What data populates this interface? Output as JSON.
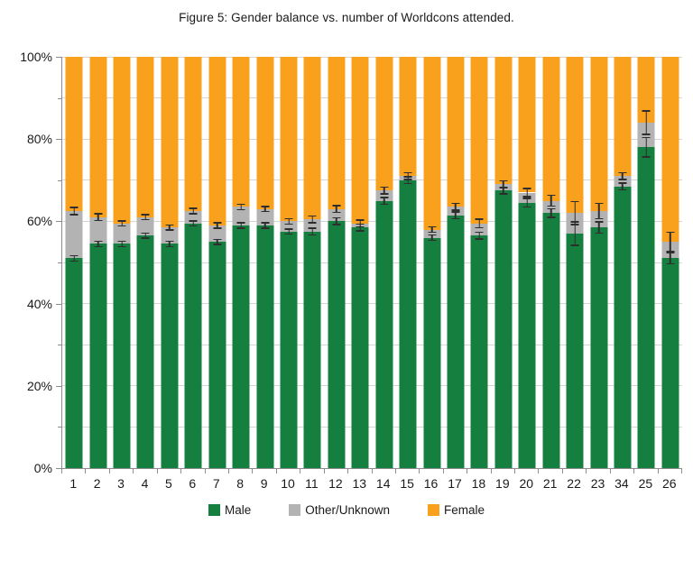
{
  "chart_data": {
    "type": "bar",
    "stacked": true,
    "orientation": "vertical",
    "title": "Figure 5: Gender balance vs. number of Worldcons attended.",
    "xlabel": "",
    "ylabel": "",
    "ylim": [
      0,
      100
    ],
    "y_major_ticks": [
      "0%",
      "20%",
      "40%",
      "60%",
      "80%",
      "100%"
    ],
    "y_minor_tick_step_percent": 10,
    "grid": "horizontal, every 10%",
    "legend_position": "bottom-center",
    "categories": [
      "1",
      "2",
      "3",
      "4",
      "5",
      "6",
      "7",
      "8",
      "9",
      "10",
      "11",
      "12",
      "13",
      "14",
      "15",
      "16",
      "17",
      "18",
      "19",
      "20",
      "21",
      "22",
      "23",
      "34",
      "25",
      "26"
    ],
    "series": [
      {
        "name": "Male",
        "color": "#157f3f",
        "values": [
          51,
          54.5,
          54.5,
          56.5,
          54.5,
          59.5,
          55,
          59,
          59,
          57.5,
          57.5,
          60,
          58.5,
          65,
          70,
          56,
          61.5,
          56.5,
          67.5,
          64.5,
          62,
          57,
          58.5,
          68.5,
          78,
          51
        ]
      },
      {
        "name": "Other/Unknown",
        "color": "#b3b3b3",
        "values": [
          11.5,
          6.5,
          5,
          4.5,
          4,
          3,
          4,
          4.5,
          4,
          2.5,
          3,
          3,
          1,
          2.5,
          1,
          2,
          2,
          3,
          1.5,
          2.5,
          3,
          5,
          4,
          2.5,
          6,
          4
        ]
      },
      {
        "name": "Female",
        "color": "#f9a11c",
        "values": [
          37.5,
          39,
          40.5,
          39,
          41.5,
          37.5,
          41,
          36.5,
          37,
          40,
          39.5,
          37,
          40.5,
          32.5,
          29,
          42,
          36.5,
          40.5,
          31,
          33,
          35,
          38,
          37.5,
          29,
          16,
          45
        ]
      }
    ],
    "error_bars": {
      "color": "#2e2e2e",
      "male_top_plus_minus": [
        0.8,
        0.8,
        0.8,
        0.8,
        0.8,
        0.8,
        0.8,
        0.8,
        0.8,
        0.8,
        1,
        1,
        1,
        1,
        1,
        0.8,
        1,
        1,
        1,
        1.2,
        1.2,
        3,
        1.5,
        1,
        2.5,
        1.5
      ],
      "other_top_plus_minus": [
        1,
        1,
        0.8,
        0.8,
        0.8,
        0.8,
        0.8,
        0.8,
        0.8,
        0.8,
        1,
        1,
        1,
        1,
        1,
        0.8,
        1,
        1.2,
        1,
        1.2,
        1.5,
        3,
        2,
        1,
        3,
        2.5
      ]
    }
  }
}
